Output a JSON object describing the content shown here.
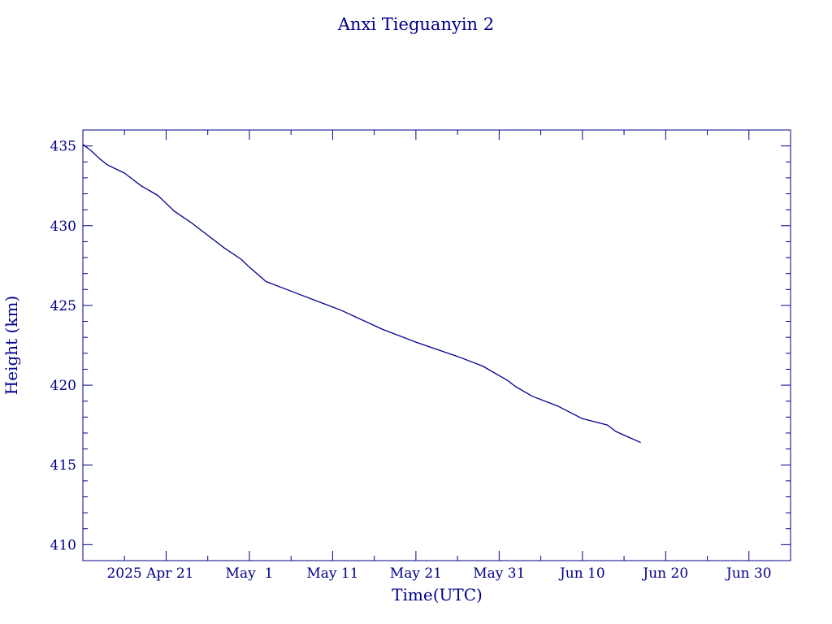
{
  "chart_data": {
    "type": "line",
    "title": "Anxi Tieguanyin 2",
    "xlabel": "Time(UTC)",
    "ylabel": "Height (km)",
    "color": "#00008b",
    "xlim": [
      "2025-04-11",
      "2025-07-05"
    ],
    "ylim": [
      409,
      436
    ],
    "yticks": [
      410,
      415,
      420,
      425,
      430,
      435
    ],
    "xticks": [
      {
        "date": "2025-04-21",
        "label": "2025 Apr 21"
      },
      {
        "date": "2025-05-01",
        "label": "May  1"
      },
      {
        "date": "2025-05-11",
        "label": "May 11"
      },
      {
        "date": "2025-05-21",
        "label": "May 21"
      },
      {
        "date": "2025-05-31",
        "label": "May 31"
      },
      {
        "date": "2025-06-10",
        "label": "Jun 10"
      },
      {
        "date": "2025-06-20",
        "label": "Jun 20"
      },
      {
        "date": "2025-06-30",
        "label": "Jun 30"
      }
    ],
    "grid": false,
    "series": [
      {
        "x": [
          "2025-04-11",
          "2025-04-12",
          "2025-04-13",
          "2025-04-14",
          "2025-04-16",
          "2025-04-17",
          "2025-04-18",
          "2025-04-20",
          "2025-04-21",
          "2025-04-22",
          "2025-04-24",
          "2025-04-26",
          "2025-04-28",
          "2025-04-30",
          "2025-05-01",
          "2025-05-03",
          "2025-05-06",
          "2025-05-10",
          "2025-05-12",
          "2025-05-17",
          "2025-05-21",
          "2025-05-26",
          "2025-05-29",
          "2025-06-01",
          "2025-06-02",
          "2025-06-04",
          "2025-06-07",
          "2025-06-10",
          "2025-06-13",
          "2025-06-14",
          "2025-06-17"
        ],
        "y": [
          435.1,
          434.7,
          434.2,
          433.8,
          433.3,
          432.9,
          432.5,
          431.9,
          431.4,
          430.9,
          430.2,
          429.4,
          428.6,
          427.9,
          427.4,
          426.5,
          425.9,
          425.1,
          424.7,
          423.5,
          422.7,
          421.8,
          421.2,
          420.3,
          419.9,
          419.3,
          418.7,
          417.9,
          417.5,
          417.1,
          416.4
        ]
      }
    ]
  }
}
